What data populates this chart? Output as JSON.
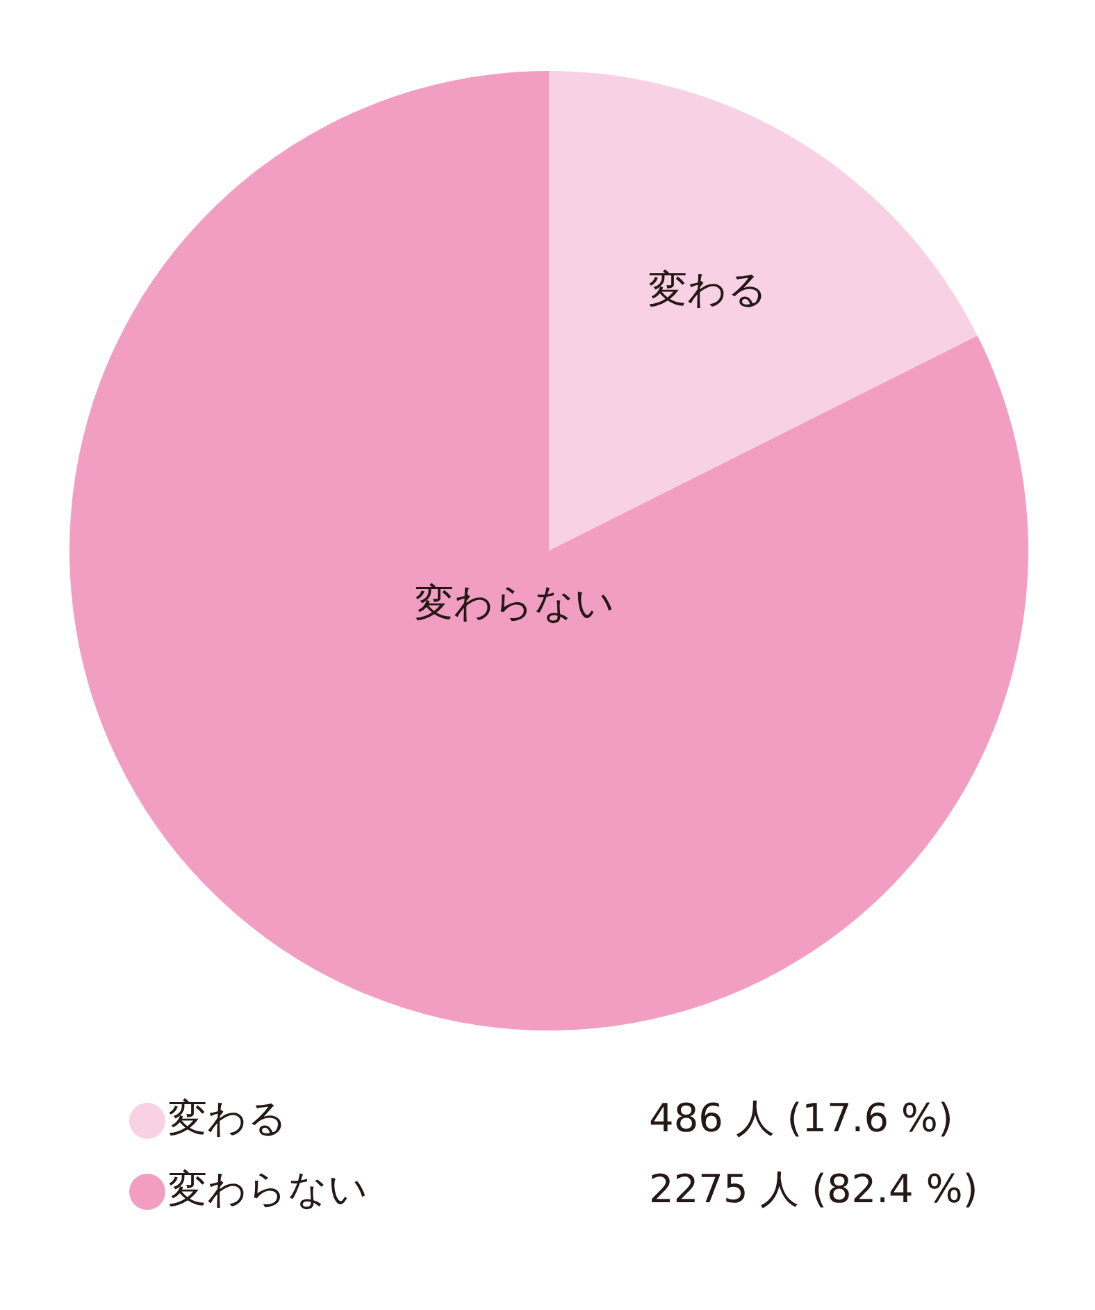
{
  "chart_data": {
    "type": "pie",
    "categories": [
      "変わる",
      "変わらない"
    ],
    "values": [
      486,
      2275
    ],
    "colors": [
      "#f8d2e4",
      "#f19ec2"
    ],
    "value_labels": [
      "486 人 (17.6 %)",
      "2275 人 (82.4 %)"
    ],
    "legend": "bottom"
  }
}
